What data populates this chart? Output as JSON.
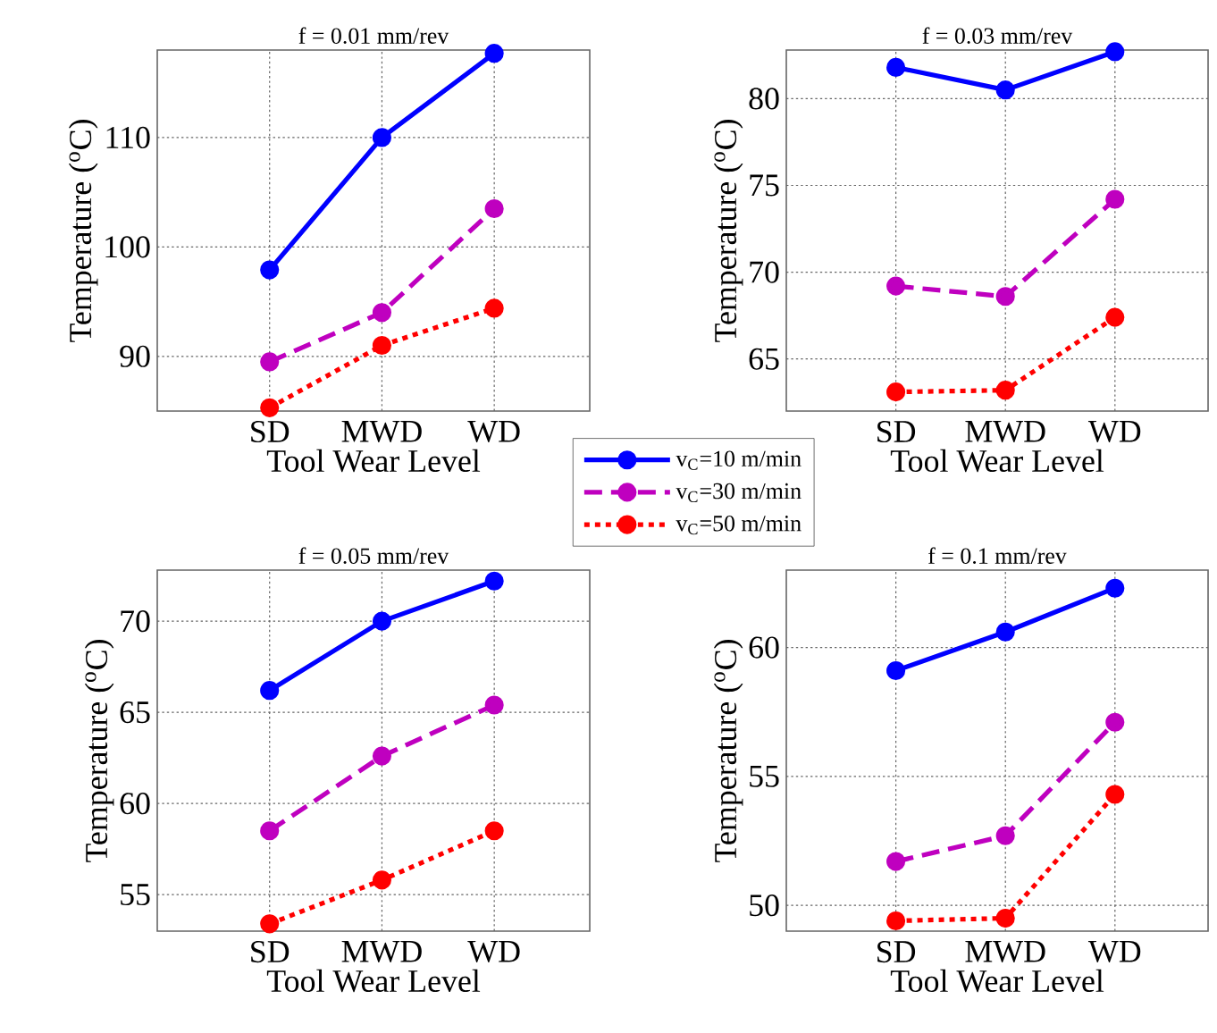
{
  "chart_data": [
    {
      "type": "line",
      "title": "f = 0.01 mm/rev",
      "xlabel": "Tool Wear Level",
      "ylabel": "Temperature ($^{o}$C)",
      "categories": [
        "SD",
        "MWD",
        "WD"
      ],
      "ylim": [
        85,
        118
      ],
      "yticks": [
        90,
        100,
        110
      ],
      "grid": true,
      "marker": "circle",
      "legend": "bottom right",
      "series": [
        {
          "name": "v$_{C}$=10 m/min",
          "color": "#0000ff",
          "line_style": "solid",
          "values": [
            97.9,
            110,
            117.7
          ]
        },
        {
          "name": "v$_{C}$=30 m/min",
          "color": "#bf00bf",
          "line_style": "dashed",
          "values": [
            89.5,
            94,
            103.5
          ]
        },
        {
          "name": "v$_{C}$=50 m/min",
          "color": "#ff0000",
          "line_style": "dotted",
          "values": [
            85.3,
            91,
            94.4
          ]
        }
      ]
    },
    {
      "type": "line",
      "title": "f = 0.03 mm/rev",
      "xlabel": "Tool Wear Level",
      "ylabel": "Temperature ($^{o}$C)",
      "categories": [
        "SD",
        "MWD",
        "WD"
      ],
      "ylim": [
        62,
        82.8
      ],
      "yticks": [
        65,
        70,
        75,
        80
      ],
      "grid": true,
      "marker": "circle",
      "series": [
        {
          "color": "#0000ff",
          "line_style": "solid",
          "values": [
            81.8,
            80.5,
            82.7
          ]
        },
        {
          "color": "#bf00bf",
          "line_style": "dashed",
          "values": [
            69.2,
            68.6,
            74.2
          ]
        },
        {
          "color": "#ff0000",
          "line_style": "dotted",
          "values": [
            63.1,
            63.2,
            67.4
          ]
        }
      ]
    },
    {
      "type": "line",
      "title": "f = 0.05 mm/rev",
      "xlabel": "Tool Wear Level",
      "ylabel": "Temperature ($^{o}$C)",
      "categories": [
        "SD",
        "MWD",
        "WD"
      ],
      "ylim": [
        53,
        72.8
      ],
      "yticks": [
        55,
        60,
        65,
        70
      ],
      "grid": true,
      "marker": "circle",
      "series": [
        {
          "color": "#0000ff",
          "line_style": "solid",
          "values": [
            66.2,
            70.0,
            72.2
          ]
        },
        {
          "color": "#bf00bf",
          "line_style": "dashed",
          "values": [
            58.5,
            62.6,
            65.4
          ]
        },
        {
          "color": "#ff0000",
          "line_style": "dotted",
          "values": [
            53.4,
            55.8,
            58.5
          ]
        }
      ]
    },
    {
      "type": "line",
      "title": "f = 0.1 mm/rev",
      "xlabel": "Tool Wear Level",
      "ylabel": "Temperature ($^{o}$C)",
      "categories": [
        "SD",
        "MWD",
        "WD"
      ],
      "ylim": [
        49,
        63
      ],
      "yticks": [
        50,
        55,
        60
      ],
      "grid": true,
      "marker": "circle",
      "series": [
        {
          "color": "#0000ff",
          "line_style": "solid",
          "values": [
            59.1,
            60.6,
            62.3
          ]
        },
        {
          "color": "#bf00bf",
          "line_style": "dashed",
          "values": [
            51.7,
            52.7,
            57.1
          ]
        },
        {
          "color": "#ff0000",
          "line_style": "dotted",
          "values": [
            49.4,
            49.5,
            54.3
          ]
        }
      ]
    }
  ]
}
